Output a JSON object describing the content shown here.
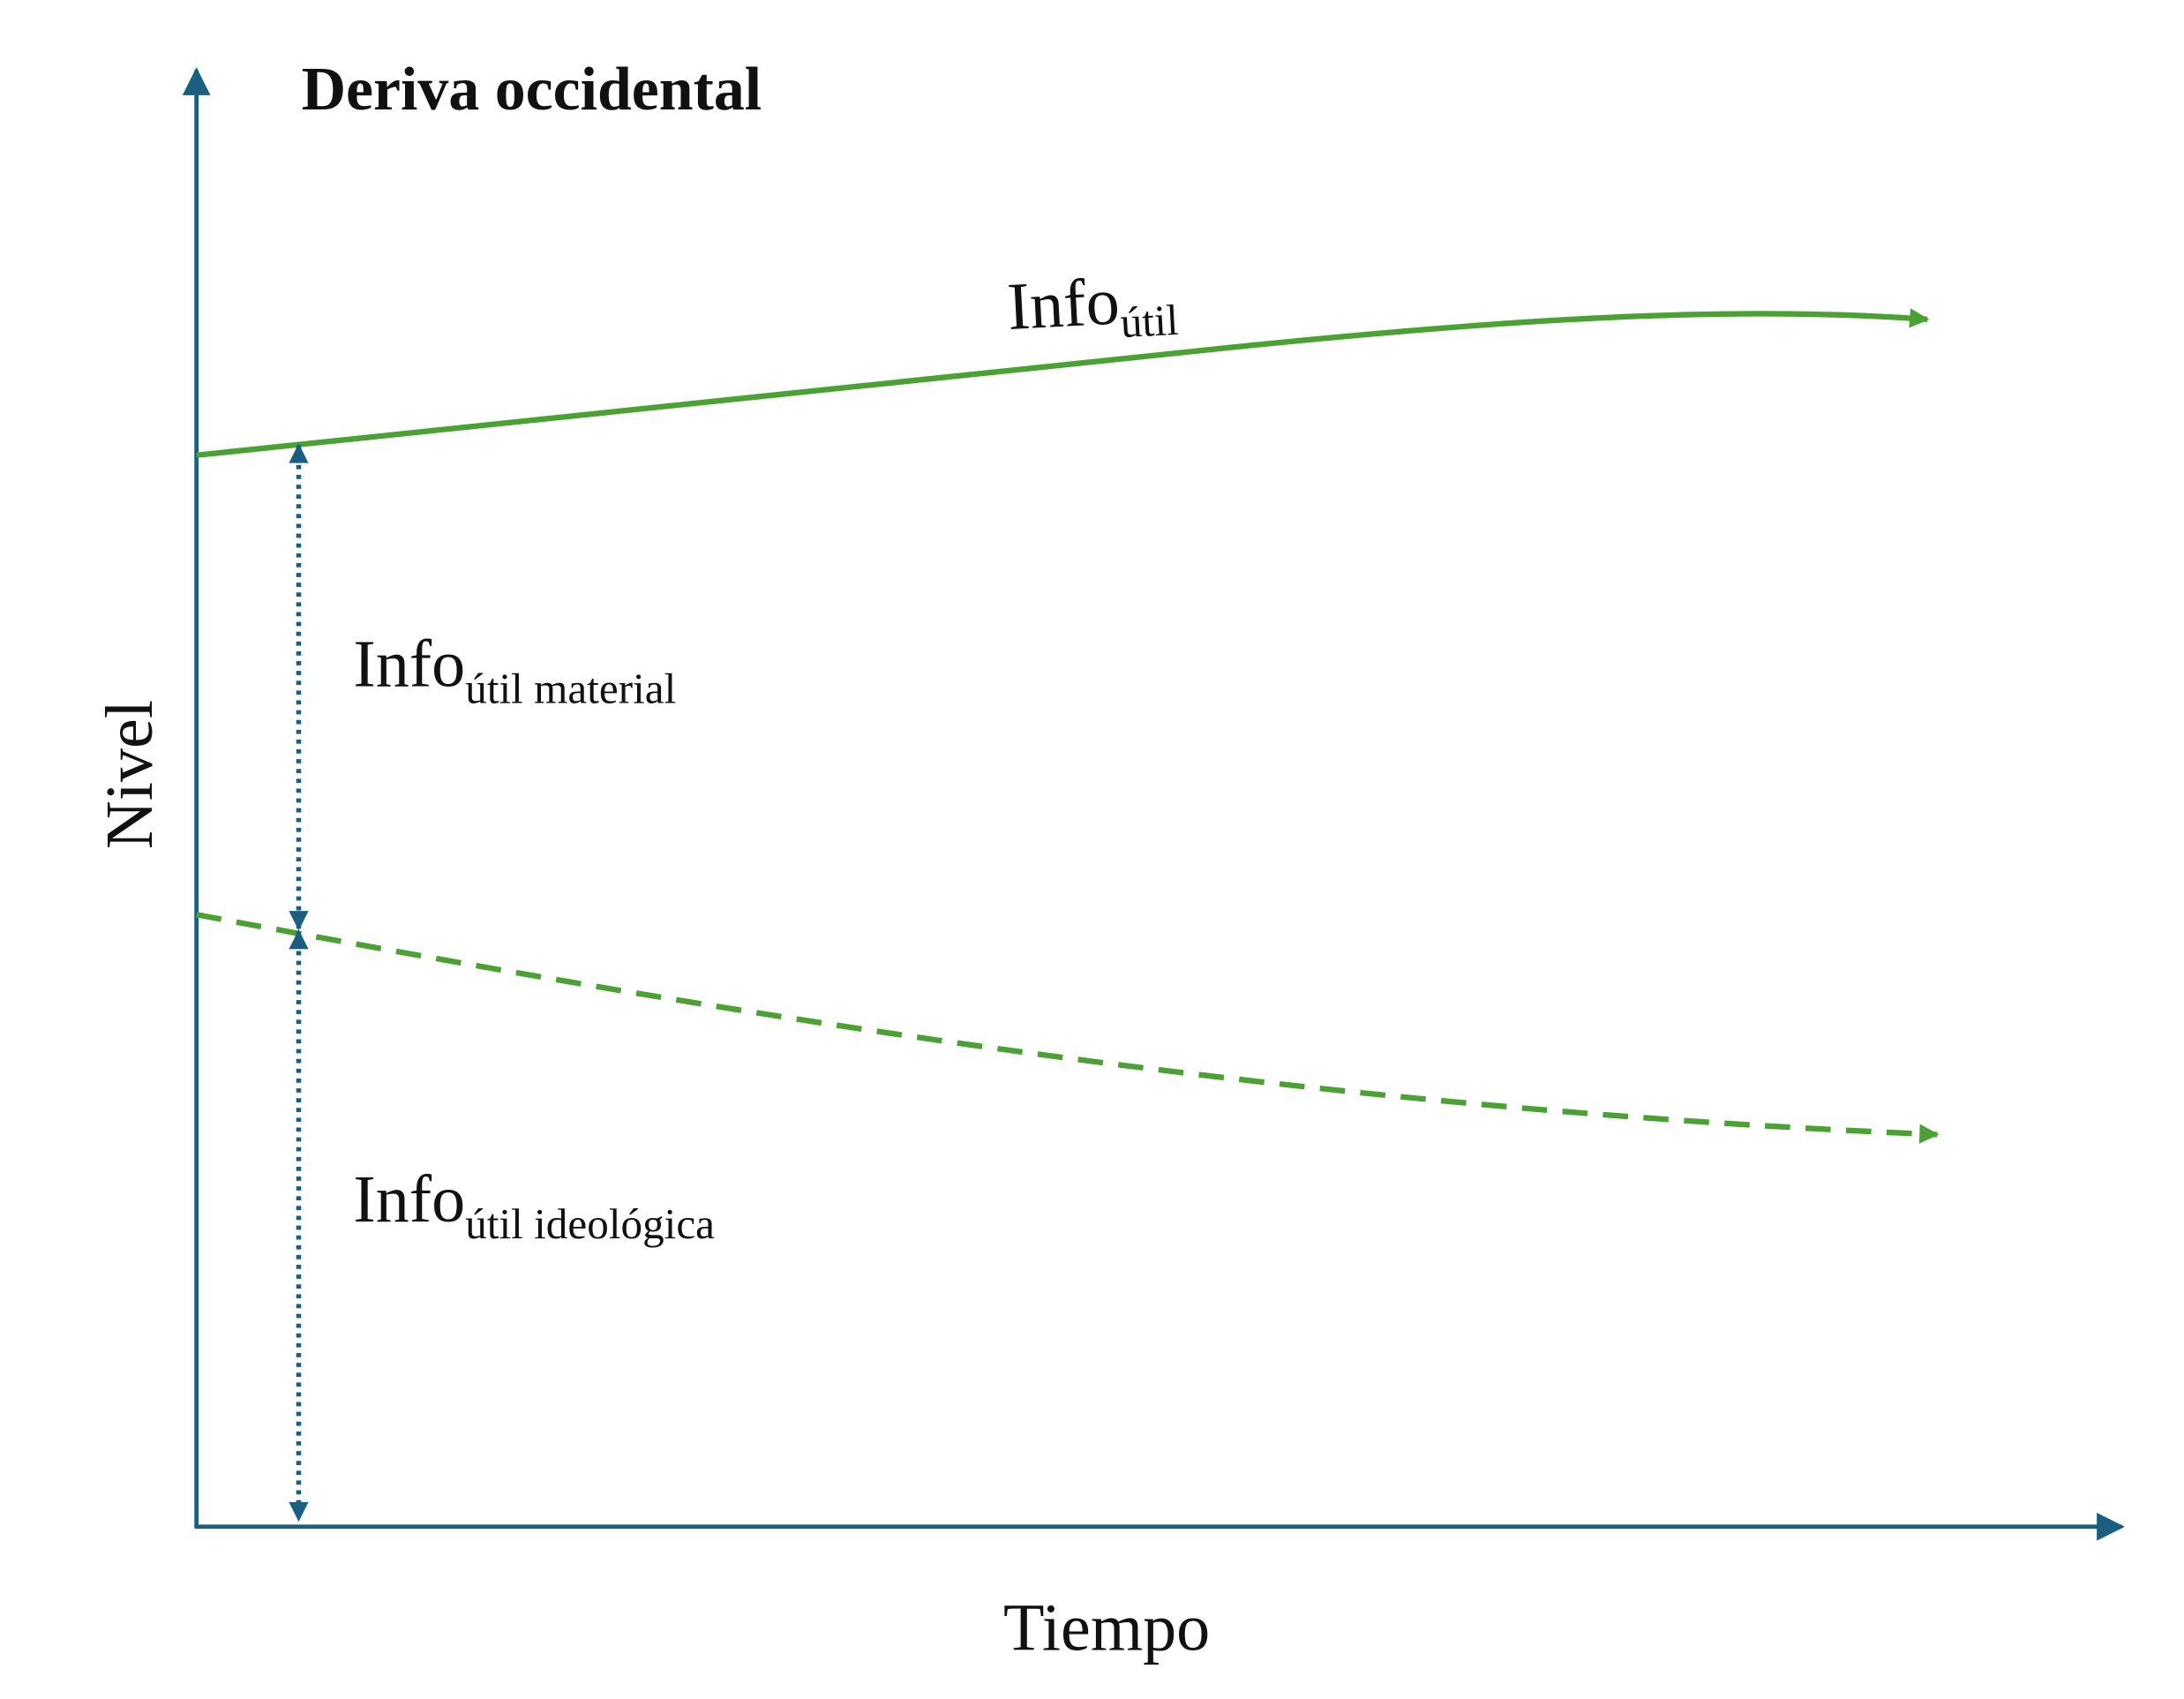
{
  "title": "Deriva occidental",
  "axes": {
    "x_label": "Tiempo",
    "y_label": "Nivel"
  },
  "curves": [
    {
      "label": {
        "base": "Info",
        "sub": "útil"
      }
    }
  ],
  "brackets": [
    {
      "label": {
        "base": "Info",
        "sub": "útil material"
      }
    },
    {
      "label": {
        "base": "Info",
        "sub": "útil ideológica"
      }
    }
  ]
}
